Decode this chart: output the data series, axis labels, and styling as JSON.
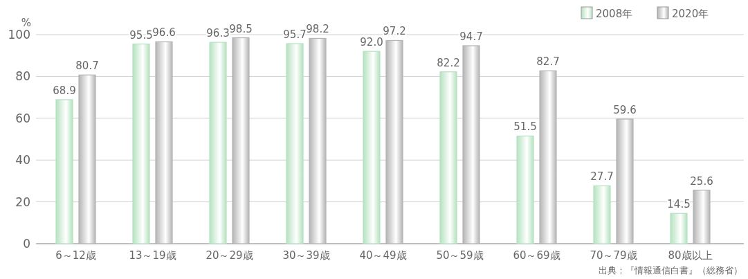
{
  "chart_data": {
    "type": "bar",
    "ylabel": "%",
    "categories": [
      "6～12歳",
      "13～19歳",
      "20～29歳",
      "30～39歳",
      "40～49歳",
      "50～59歳",
      "60～69歳",
      "70～79歳",
      "80歳以上"
    ],
    "series": [
      {
        "name": "2008年",
        "color": "#b5e2c0",
        "values": [
          68.9,
          95.5,
          96.3,
          95.7,
          92.0,
          82.2,
          51.5,
          27.7,
          14.5
        ],
        "value_labels": [
          "68.9",
          "95.5",
          "96.3",
          "95.7",
          "92.0",
          "82.2",
          "51.5",
          "27.7",
          "14.5"
        ]
      },
      {
        "name": "2020年",
        "color": "#b4b4b4",
        "values": [
          80.7,
          96.6,
          98.5,
          98.2,
          97.2,
          94.7,
          82.7,
          59.6,
          25.6
        ],
        "value_labels": [
          "80.7",
          "96.6",
          "98.5",
          "98.2",
          "97.2",
          "94.7",
          "82.7",
          "59.6",
          "25.6"
        ]
      }
    ],
    "ylim": [
      0,
      100
    ],
    "yticks": [
      0,
      20,
      40,
      60,
      80,
      100
    ],
    "grid": "y",
    "legend": "top right",
    "annotations": [
      "出典：『情報通信白書』（総務省）"
    ]
  }
}
